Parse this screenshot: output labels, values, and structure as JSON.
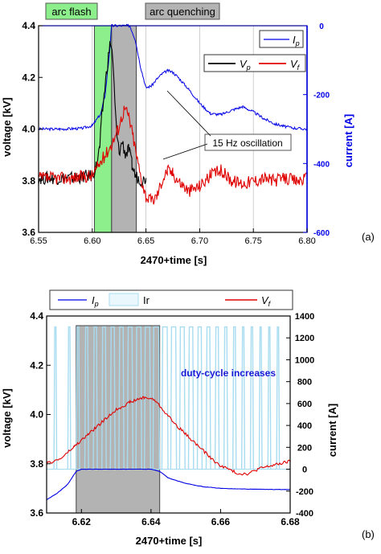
{
  "colors": {
    "voltage_p": "#000000",
    "voltage_f": "#e00000",
    "current": "#0000e6",
    "ir": "#a8dcf0",
    "arc_flash_fill": "#8cef8c",
    "quench_fill": "#b3b3b3",
    "axis_right": "#0000e6",
    "duty_text": "#1a1ad6"
  },
  "chart_data": [
    {
      "panel_label": "(a)",
      "type": "line",
      "xlabel": "2470+time [s]",
      "ylabel": "voltage [kV]",
      "y2label": "current [A]",
      "xlim": [
        6.55,
        6.8
      ],
      "ylim": [
        3.6,
        4.4
      ],
      "y2lim": [
        -600,
        0
      ],
      "xticks": [
        "6.55",
        "6.60",
        "6.65",
        "6.70",
        "6.75",
        "6.80"
      ],
      "yticks": [
        "3.6",
        "3.8",
        "4.0",
        "4.2",
        "4.4"
      ],
      "y2ticks": [
        "-600",
        "-400",
        "-200",
        "0"
      ],
      "vertical_gridlines": [
        6.6,
        6.65,
        6.7,
        6.75
      ],
      "regions": [
        {
          "label": "arc flash",
          "x_start": 6.602,
          "x_end": 6.618
        },
        {
          "label": "arc quenching",
          "x_start": 6.618,
          "x_end": 6.641
        }
      ],
      "annotation": "15 Hz oscillation",
      "legend": {
        "current_label": "I",
        "current_sub": "p",
        "vp_label": "V",
        "vp_sub": "p",
        "vf_label": "V",
        "vf_sub": "f"
      },
      "series": [
        {
          "key": "Ip",
          "axis": "right",
          "x": [
            6.55,
            6.57,
            6.59,
            6.6,
            6.608,
            6.612,
            6.616,
            6.618,
            6.625,
            6.635,
            6.64,
            6.645,
            6.65,
            6.655,
            6.66,
            6.665,
            6.67,
            6.675,
            6.68,
            6.69,
            6.7,
            6.71,
            6.72,
            6.73,
            6.74,
            6.75,
            6.76,
            6.77,
            6.78,
            6.79,
            6.8
          ],
          "y": [
            -300,
            -300,
            -298,
            -290,
            -255,
            -200,
            -80,
            0,
            0,
            0,
            -40,
            -120,
            -180,
            -175,
            -155,
            -140,
            -130,
            -135,
            -150,
            -185,
            -225,
            -255,
            -258,
            -245,
            -235,
            -250,
            -270,
            -285,
            -293,
            -298,
            -300
          ]
        },
        {
          "key": "Vp",
          "axis": "left",
          "x": [
            6.55,
            6.58,
            6.6,
            6.604,
            6.607,
            6.609,
            6.611,
            6.613,
            6.615,
            6.617,
            6.619,
            6.621,
            6.623,
            6.625,
            6.628,
            6.631,
            6.634,
            6.637,
            6.64,
            6.643,
            6.647,
            6.65
          ],
          "y": [
            3.81,
            3.81,
            3.82,
            3.86,
            3.93,
            4.05,
            4.13,
            4.21,
            4.28,
            4.34,
            4.28,
            4.1,
            3.97,
            3.91,
            3.95,
            3.9,
            3.92,
            3.86,
            3.82,
            3.81,
            3.8,
            3.81
          ]
        },
        {
          "key": "Vf",
          "axis": "left",
          "x": [
            6.55,
            6.58,
            6.6,
            6.606,
            6.612,
            6.618,
            6.624,
            6.63,
            6.634,
            6.638,
            6.642,
            6.646,
            6.65,
            6.655,
            6.66,
            6.665,
            6.67,
            6.675,
            6.68,
            6.69,
            6.7,
            6.71,
            6.72,
            6.73,
            6.74,
            6.75,
            6.76,
            6.77,
            6.78,
            6.79,
            6.8
          ],
          "y": [
            3.81,
            3.81,
            3.82,
            3.86,
            3.9,
            3.94,
            4.0,
            4.08,
            4.05,
            3.97,
            3.88,
            3.8,
            3.74,
            3.72,
            3.74,
            3.8,
            3.84,
            3.83,
            3.8,
            3.76,
            3.78,
            3.82,
            3.84,
            3.8,
            3.79,
            3.8,
            3.81,
            3.8,
            3.81,
            3.8,
            3.81
          ]
        }
      ]
    },
    {
      "panel_label": "(b)",
      "type": "line",
      "xlabel": "2470+time [s]",
      "ylabel": "voltage [kV]",
      "y2label": "current [A]",
      "xlim": [
        6.61,
        6.68
      ],
      "ylim": [
        3.6,
        4.4
      ],
      "y2lim": [
        -400,
        1400
      ],
      "xticks": [
        "6.62",
        "6.64",
        "6.66",
        "6.68"
      ],
      "yticks": [
        "3.6",
        "3.8",
        "4.0",
        "4.2",
        "4.4"
      ],
      "y2ticks": [
        "-400",
        "-200",
        "0",
        "200",
        "400",
        "600",
        "800",
        "1000",
        "1200",
        "1400"
      ],
      "regions": [
        {
          "label": "",
          "x_start": 6.6185,
          "x_end": 6.6425
        }
      ],
      "annotation": "duty-cycle increases",
      "legend": {
        "ip_label": "I",
        "ip_sub": "p",
        "ir_label": "Ir",
        "vf_label": "V",
        "vf_sub": "f"
      },
      "ir_pulses": {
        "x": [
          6.6125,
          6.6165,
          6.619,
          6.6215,
          6.624,
          6.6265,
          6.629,
          6.6315,
          6.634,
          6.6365,
          6.639,
          6.6415,
          6.644,
          6.6465,
          6.649,
          6.6515,
          6.654,
          6.6565,
          6.659,
          6.6615,
          6.664,
          6.6665,
          6.669,
          6.6715,
          6.674,
          6.6765
        ],
        "widths": [
          0.0003,
          0.0004,
          0.0005,
          0.0006,
          0.0007,
          0.0008,
          0.0009,
          0.001,
          0.0011,
          0.0012,
          0.0013,
          0.0014,
          0.0013,
          0.0012,
          0.0011,
          0.001,
          0.0009,
          0.0008,
          0.0007,
          0.0006,
          0.0005,
          0.0004,
          0.0004,
          0.0003,
          0.0003,
          0.0003
        ],
        "peak": 1300
      },
      "series": [
        {
          "key": "Ip",
          "axis": "right",
          "x": [
            6.61,
            6.613,
            6.616,
            6.6185,
            6.62,
            6.625,
            6.63,
            6.635,
            6.64,
            6.6425,
            6.645,
            6.65,
            6.655,
            6.66,
            6.665,
            6.67,
            6.675,
            6.68
          ],
          "y": [
            -280,
            -220,
            -140,
            -20,
            0,
            0,
            0,
            0,
            0,
            -20,
            -80,
            -130,
            -160,
            -175,
            -180,
            -183,
            -185,
            -185
          ]
        },
        {
          "key": "Vf",
          "axis": "left",
          "x": [
            6.61,
            6.614,
            6.618,
            6.622,
            6.626,
            6.63,
            6.634,
            6.638,
            6.641,
            6.644,
            6.647,
            6.65,
            6.653,
            6.656,
            6.659,
            6.662,
            6.665,
            6.668,
            6.671,
            6.674,
            6.677,
            6.68
          ],
          "y": [
            3.8,
            3.82,
            3.87,
            3.92,
            3.97,
            4.02,
            4.05,
            4.07,
            4.06,
            4.01,
            3.96,
            3.92,
            3.88,
            3.84,
            3.8,
            3.78,
            3.76,
            3.76,
            3.78,
            3.79,
            3.8,
            3.81
          ]
        }
      ]
    }
  ]
}
